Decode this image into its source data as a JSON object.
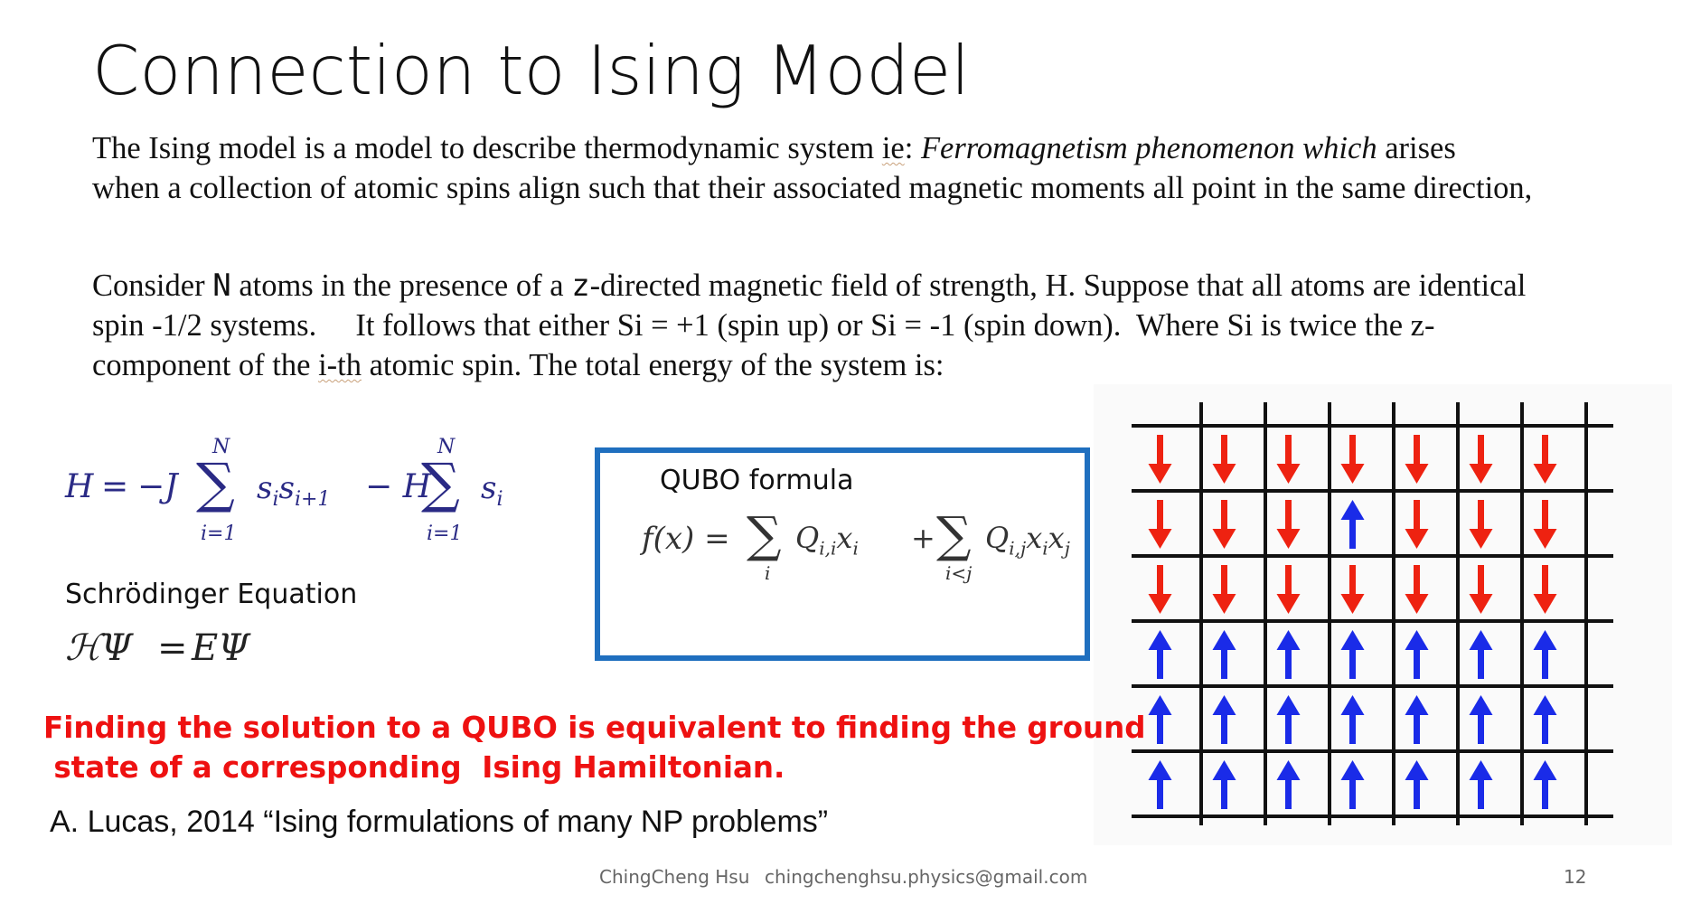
{
  "slide": {
    "title": "Connection to Ising Model",
    "intro": {
      "line1_a": "The Ising model is a model to describe thermodynamic system ",
      "line1_ie": "ie",
      "line1_b": ": ",
      "line1_italic": "Ferromagnetism phenomenon which",
      "line1_c": " arises",
      "line2": "when a collection of atomic spins align such that their associated magnetic moments all point in the same direction,"
    },
    "consider": {
      "p1": "Consider ",
      "sym_n": "N",
      "p2": " atoms in the presence of a ",
      "sym_z": "z",
      "p3": "-directed magnetic field of strength, H. Suppose that all atoms are identical",
      "line2": "spin -1/2 systems.     It follows that either Si = +1 (spin up) or Si = -1 (spin down).  Where Si is twice the z-",
      "line3_a": "component of the ",
      "line3_ith": "i-th",
      "line3_b": " atomic spin.  The total energy of the system is:"
    },
    "hamiltonian": {
      "H": "H",
      "eq": "=",
      "minus_J": "−J",
      "sum": "∑",
      "upper": "N",
      "lower": "i=1",
      "term1": "s",
      "sub_i": "i",
      "term1b": "s",
      "sub_i1": "i+1",
      "minus_H": "− H",
      "term2": "s",
      "sub_i2": "i"
    },
    "schrodinger": {
      "label": "Schrödinger Equation",
      "lhs": "ℋΨ",
      "eq": "=",
      "rhs": "EΨ"
    },
    "qubo": {
      "label": "QUBO formula",
      "f": "f(x) =",
      "sum": "∑",
      "sub_i": "i",
      "Q1": "Q",
      "Q1_sub": "i,i",
      "x1": "x",
      "x1_sub": "i",
      "plus": "+",
      "sub_ij": "i<j",
      "Q2": "Q",
      "Q2_sub": "i,j",
      "x2": "x",
      "x2_sub": "i",
      "x3": "x",
      "x3_sub": "j"
    },
    "highlight": {
      "line1": "Finding the solution to a QUBO is equivalent to finding the ground",
      "line2": " state of a corresponding  Ising Hamiltonian."
    },
    "reference": "A. Lucas, 2014  “Ising formulations of many NP problems”",
    "footer": {
      "author": "ChingCheng Hsu",
      "email": "chingchenghsu.physics@gmail.com",
      "page": "12"
    },
    "spin_grid": {
      "rows": [
        [
          "down",
          "down",
          "down",
          "down",
          "down",
          "down",
          "down"
        ],
        [
          "down",
          "down",
          "down",
          "up",
          "down",
          "down",
          "down"
        ],
        [
          "down",
          "down",
          "down",
          "down",
          "down",
          "down",
          "down"
        ],
        [
          "up",
          "up",
          "up",
          "up",
          "up",
          "up",
          "up"
        ],
        [
          "up",
          "up",
          "up",
          "up",
          "up",
          "up",
          "up"
        ],
        [
          "up",
          "up",
          "up",
          "up",
          "up",
          "up",
          "up"
        ]
      ],
      "up_color": "#1a2be8",
      "down_color": "#ee2211"
    }
  }
}
